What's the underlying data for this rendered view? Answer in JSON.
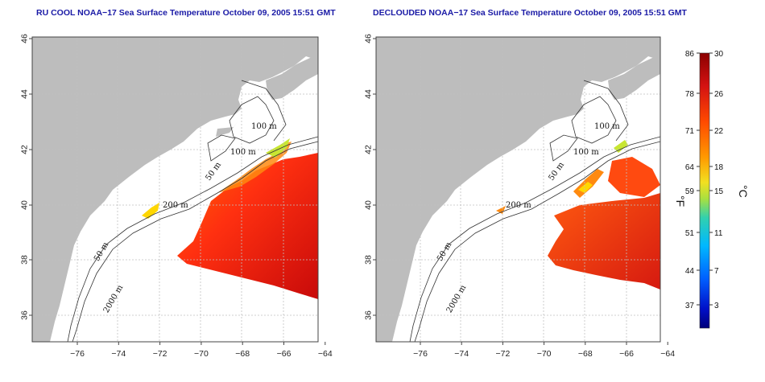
{
  "panels": [
    {
      "title": "RU COOL NOAA−17 Sea Surface Temperature October 09, 2005 15:51 GMT"
    },
    {
      "title": "DECLOUDED NOAA−17 Sea Surface Temperature October 09, 2005 15:51 GMT"
    }
  ],
  "axes": {
    "x_ticks": [
      "−76",
      "−74",
      "−72",
      "−70",
      "−68",
      "−66",
      "−64"
    ],
    "y_ticks": [
      "36",
      "38",
      "40",
      "42",
      "44",
      "46"
    ]
  },
  "isobaths": {
    "left": [
      "100 m",
      "100 m",
      "50 m",
      "200 m",
      "50 m",
      "2000 m"
    ],
    "right": [
      "100 m",
      "100 m",
      "50 m",
      "200 m",
      "50 m",
      "2000 m"
    ]
  },
  "colorbar": {
    "fahrenheit_ticks": [
      "86",
      "78",
      "71",
      "64",
      "59",
      "51",
      "44",
      "37"
    ],
    "celsius_ticks": [
      "30",
      "26",
      "22",
      "18",
      "15",
      "11",
      "7",
      "3"
    ],
    "fahrenheit_label": "°F",
    "celsius_label": "°C",
    "colors": [
      "#8b0000",
      "#cc1010",
      "#ff3a00",
      "#ff8c00",
      "#ffd700",
      "#c8e632",
      "#32d2a0",
      "#00c8ff",
      "#0070ff",
      "#0010c0",
      "#000080"
    ]
  },
  "colors": {
    "land": "#bdbdbd",
    "title_text": "#1a1aa6",
    "grid": "#c0c0c0"
  }
}
